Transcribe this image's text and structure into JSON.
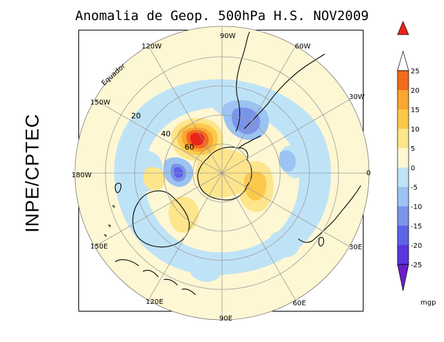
{
  "title": "Anomalia de Geop. 500hPa H.S. NOV2009",
  "side_label": "INPE/CPTEC",
  "longitude_labels": {
    "lon_90w": "90W",
    "lon_60w": "60W",
    "lon_30w": "30W",
    "lon_0": "0",
    "lon_30e": "30E",
    "lon_60e": "60E",
    "lon_90e": "90E",
    "lon_120e": "120E",
    "lon_150e": "150E",
    "lon_180w": "180W",
    "lon_150w": "150W",
    "lon_120w": "120W"
  },
  "latitude_labels": {
    "lat_20": "20",
    "lat_40": "40",
    "lat_60": "60"
  },
  "equator_label": "Equador",
  "colorbar": {
    "unit": "mgp",
    "ticks": [
      "25",
      "20",
      "15",
      "10",
      "5",
      "0",
      "-5",
      "-10",
      "-15",
      "-20",
      "-25"
    ],
    "colors": {
      "c_gt25": "#e8251a",
      "c_20_25": "#f26a1d",
      "c_15_20": "#f9a632",
      "c_10_15": "#fbc94a",
      "c_5_10": "#fde58c",
      "c_0_5": "#fef7d3",
      "c_m5_0": "#bfe3f6",
      "c_m10_m5": "#9cc3f1",
      "c_m15_m10": "#7a94e8",
      "c_m20_m15": "#5d63e6",
      "c_m25_m20": "#5a36e0",
      "c_lt_m25": "#6a1fc8"
    }
  }
}
